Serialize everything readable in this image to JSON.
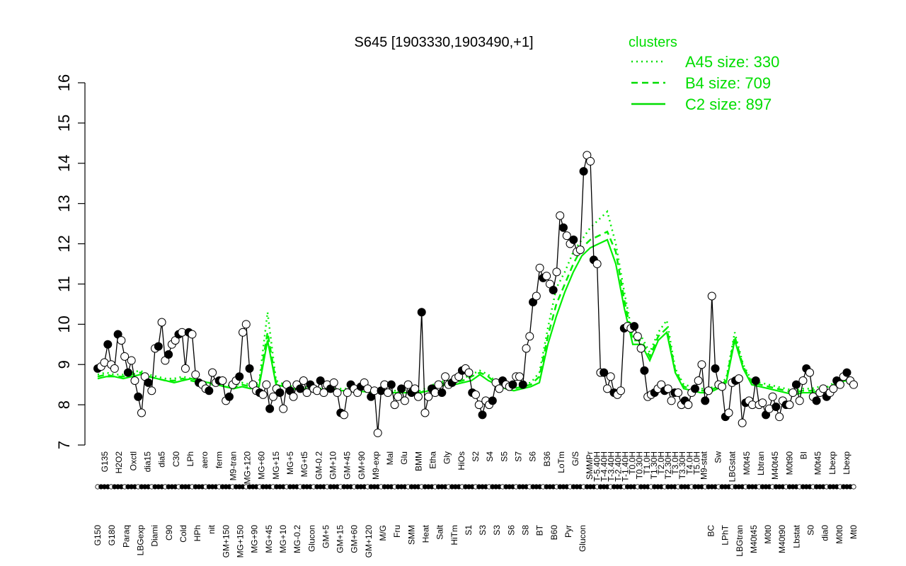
{
  "chart_data": {
    "type": "line",
    "title": "S645 [1903330,1903490,+1]",
    "xlabel": "",
    "ylabel": "",
    "ylim": [
      7,
      16
    ],
    "yticks": [
      7,
      8,
      9,
      10,
      11,
      12,
      13,
      14,
      15,
      16
    ],
    "grid": false,
    "legend": {
      "title": "clusters",
      "placement": "top-right",
      "entries": [
        {
          "label": "A45 size: 330",
          "style": "dotted"
        },
        {
          "label": "B4 size: 709",
          "style": "dashed"
        },
        {
          "label": "C2 size: 897",
          "style": "solid"
        }
      ]
    },
    "x_labels": [
      {
        "label": "G150",
        "row": 1
      },
      {
        "label": "G135",
        "row": 0
      },
      {
        "label": "G180",
        "row": 1
      },
      {
        "label": "H2O2",
        "row": 0
      },
      {
        "label": "Paraq",
        "row": 1
      },
      {
        "label": "Oxctl",
        "row": 0
      },
      {
        "label": "LBGexp",
        "row": 1
      },
      {
        "label": "dia15",
        "row": 0
      },
      {
        "label": "Diami",
        "row": 1
      },
      {
        "label": "dia5",
        "row": 0
      },
      {
        "label": "C90",
        "row": 1
      },
      {
        "label": "C30",
        "row": 0
      },
      {
        "label": "Cold",
        "row": 1
      },
      {
        "label": "LPh",
        "row": 0
      },
      {
        "label": "HPh",
        "row": 1
      },
      {
        "label": "aero",
        "row": 0
      },
      {
        "label": "nit",
        "row": 1
      },
      {
        "label": "ferm",
        "row": 0
      },
      {
        "label": "GM+150",
        "row": 1
      },
      {
        "label": "M9-tran",
        "row": 0
      },
      {
        "label": "MG+150",
        "row": 1
      },
      {
        "label": "MG+120",
        "row": 0
      },
      {
        "label": "MG+90",
        "row": 1
      },
      {
        "label": "MG+60",
        "row": 0
      },
      {
        "label": "MG+45",
        "row": 1
      },
      {
        "label": "MG+15",
        "row": 0
      },
      {
        "label": "MG+10",
        "row": 1
      },
      {
        "label": "MG+5",
        "row": 0
      },
      {
        "label": "MG-0.2",
        "row": 1
      },
      {
        "label": "MG+t5",
        "row": 0
      },
      {
        "label": "Glucon",
        "row": 1
      },
      {
        "label": "GM-0.2",
        "row": 0
      },
      {
        "label": "GM+5",
        "row": 1
      },
      {
        "label": "GM+10",
        "row": 0
      },
      {
        "label": "GM+15",
        "row": 1
      },
      {
        "label": "GM+45",
        "row": 0
      },
      {
        "label": "GM+60",
        "row": 1
      },
      {
        "label": "GM+90",
        "row": 0
      },
      {
        "label": "GM+120",
        "row": 1
      },
      {
        "label": "M9-exp",
        "row": 0
      },
      {
        "label": "M/G",
        "row": 1
      },
      {
        "label": "Mal",
        "row": 0
      },
      {
        "label": "Fru",
        "row": 1
      },
      {
        "label": "Glu",
        "row": 0
      },
      {
        "label": "SMM",
        "row": 1
      },
      {
        "label": "BMM",
        "row": 0
      },
      {
        "label": "Heat",
        "row": 1
      },
      {
        "label": "Etha",
        "row": 0
      },
      {
        "label": "Salt",
        "row": 1
      },
      {
        "label": "Gly",
        "row": 0
      },
      {
        "label": "HiTm",
        "row": 1
      },
      {
        "label": "HiOs",
        "row": 0
      },
      {
        "label": "S1",
        "row": 1
      },
      {
        "label": "S2",
        "row": 0
      },
      {
        "label": "S3",
        "row": 1
      },
      {
        "label": "S4",
        "row": 0
      },
      {
        "label": "S3",
        "row": 1
      },
      {
        "label": "S5",
        "row": 0
      },
      {
        "label": "S6",
        "row": 1
      },
      {
        "label": "S7",
        "row": 0
      },
      {
        "label": "S8",
        "row": 1
      },
      {
        "label": "S6",
        "row": 0
      },
      {
        "label": "BT",
        "row": 1
      },
      {
        "label": "B36",
        "row": 0
      },
      {
        "label": "B60",
        "row": 1
      },
      {
        "label": "LoTm",
        "row": 0
      },
      {
        "label": "Pyr",
        "row": 1
      },
      {
        "label": "G/S",
        "row": 0
      },
      {
        "label": "Glucon",
        "row": 1
      },
      {
        "label": "SMMPr",
        "row": 0
      },
      {
        "label": "T-5.40H",
        "row": 0
      },
      {
        "label": "T-4.40H",
        "row": 0
      },
      {
        "label": "T-3.40H",
        "row": 0
      },
      {
        "label": "T-2.40H",
        "row": 0
      },
      {
        "label": "T-1.40H",
        "row": 0
      },
      {
        "label": "T0.0H",
        "row": 0
      },
      {
        "label": "T0.30H",
        "row": 0
      },
      {
        "label": "T1.0H",
        "row": 0
      },
      {
        "label": "T1.30H",
        "row": 0
      },
      {
        "label": "T2.0H",
        "row": 0
      },
      {
        "label": "T2.30H",
        "row": 0
      },
      {
        "label": "T3.0H",
        "row": 0
      },
      {
        "label": "T3.30H",
        "row": 0
      },
      {
        "label": "T4.0H",
        "row": 0
      },
      {
        "label": "T5.0H",
        "row": 0
      },
      {
        "label": "M9-stat",
        "row": 0
      },
      {
        "label": "BC",
        "row": 1
      },
      {
        "label": "Sw",
        "row": 0
      },
      {
        "label": "LPhT",
        "row": 1
      },
      {
        "label": "LBGstat",
        "row": 0
      },
      {
        "label": "LBGtran",
        "row": 1
      },
      {
        "label": "M0t45",
        "row": 0
      },
      {
        "label": "M40t45",
        "row": 1
      },
      {
        "label": "Lbtran",
        "row": 0
      },
      {
        "label": "M0t0",
        "row": 1
      },
      {
        "label": "M40t45",
        "row": 0
      },
      {
        "label": "M40t90",
        "row": 1
      },
      {
        "label": "M0t90",
        "row": 0
      },
      {
        "label": "Lbstat",
        "row": 1
      },
      {
        "label": "BI",
        "row": 0
      },
      {
        "label": "S0",
        "row": 1
      },
      {
        "label": "M0t45",
        "row": 0
      },
      {
        "label": "dia0",
        "row": 1
      },
      {
        "label": "Lbexp",
        "row": 0
      },
      {
        "label": "M0t0",
        "row": 1
      },
      {
        "label": "Lbexp",
        "row": 0
      },
      {
        "label": "Mt0",
        "row": 1
      }
    ],
    "series": [
      {
        "style": "solid",
        "role": "points",
        "values": [
          8.9,
          8.95,
          9.05,
          9.5,
          9.0,
          8.9,
          9.75,
          9.6,
          9.2,
          8.8,
          9.1,
          8.6,
          8.2,
          7.8,
          8.7,
          8.55,
          8.35,
          9.4,
          9.45,
          10.05,
          9.1,
          9.25,
          9.5,
          9.6,
          9.75,
          9.8,
          8.9,
          9.8,
          9.75,
          8.75,
          8.55,
          8.5,
          8.4,
          8.35,
          8.8,
          8.55,
          8.6,
          8.6,
          8.1,
          8.2,
          8.5,
          8.6,
          8.7,
          9.8,
          10.0,
          8.9,
          8.5,
          8.35,
          8.3,
          8.25,
          8.5,
          7.9,
          8.2,
          8.4,
          8.3,
          7.9,
          8.5,
          8.35,
          8.2,
          8.5,
          8.4,
          8.6,
          8.3,
          8.5,
          8.4,
          8.35,
          8.6,
          8.3,
          8.5,
          8.4,
          8.55,
          8.3,
          7.8,
          7.75,
          8.3,
          8.5,
          8.4,
          8.3,
          8.45,
          8.55,
          8.4,
          8.2,
          8.35,
          7.3,
          8.35,
          8.5,
          8.3,
          8.5,
          8.0,
          8.2,
          8.4,
          8.1,
          8.5,
          8.3,
          8.4,
          8.2,
          10.3,
          7.8,
          8.2,
          8.4,
          8.3,
          8.5,
          8.3,
          8.7,
          8.5,
          8.55,
          8.65,
          8.7,
          8.85,
          8.9,
          8.8,
          8.3,
          8.25,
          8.0,
          7.75,
          8.1,
          8.0,
          8.1,
          8.55,
          8.4,
          8.6,
          8.5,
          8.45,
          8.5,
          8.7,
          8.7,
          8.5,
          9.4,
          9.7,
          10.55,
          10.7,
          11.4,
          11.15,
          11.2,
          11.0,
          10.85,
          11.3,
          12.7,
          12.4,
          12.2,
          12.0,
          12.1,
          11.8,
          11.85,
          13.8,
          14.2,
          14.05,
          11.6,
          11.5,
          8.8,
          8.8,
          8.4,
          8.7,
          8.3,
          8.25,
          8.35,
          9.9,
          9.95,
          9.9,
          9.95,
          9.7,
          9.4,
          8.85,
          8.2,
          8.25,
          8.3,
          8.4,
          8.5,
          8.35,
          8.4,
          8.1,
          8.3,
          8.3,
          8.0,
          8.1,
          8.0,
          8.3,
          8.4,
          8.6,
          9.0,
          8.1,
          8.35,
          10.7,
          8.9,
          8.5,
          8.45,
          7.7,
          7.8,
          8.55,
          8.6,
          8.65,
          7.55,
          8.05,
          8.1,
          8.0,
          8.6,
          8.0,
          8.05,
          7.75,
          7.9,
          8.2,
          7.95,
          7.7,
          8.1,
          8.0,
          8.0,
          8.3,
          8.5,
          8.1,
          8.6,
          8.9,
          8.8,
          8.2,
          8.1,
          8.3,
          8.4,
          8.2,
          8.3,
          8.4,
          8.6,
          8.5,
          8.7,
          8.8,
          8.6,
          8.5
        ]
      },
      {
        "name": "C2",
        "style": "solid",
        "role": "cluster",
        "values": [
          8.65,
          8.7,
          8.7,
          8.65,
          8.7,
          8.75,
          8.7,
          8.65,
          8.6,
          8.55,
          8.6,
          8.65,
          8.6,
          8.55,
          8.5,
          8.45,
          8.4,
          8.45,
          8.4,
          8.45,
          9.6,
          8.5,
          8.45,
          8.4,
          8.38,
          8.35,
          8.35,
          8.33,
          8.35,
          8.35,
          8.33,
          8.33,
          8.32,
          8.3,
          8.32,
          8.3,
          8.3,
          8.3,
          8.3,
          8.35,
          8.45,
          8.5,
          8.5,
          8.55,
          8.6,
          8.75,
          8.6,
          8.5,
          8.4,
          8.35,
          8.4,
          8.45,
          8.55,
          9.5,
          10.2,
          10.8,
          11.3,
          11.7,
          11.9,
          12.0,
          12.1,
          11.5,
          10.4,
          9.5,
          9.5,
          9.1,
          9.6,
          9.8,
          8.8,
          8.4,
          8.35,
          8.3,
          8.3,
          8.4,
          8.55,
          9.6,
          8.9,
          8.5,
          8.45,
          8.4,
          8.35,
          8.3,
          8.25,
          8.3,
          8.3,
          8.35,
          8.35,
          8.5,
          8.6,
          8.5
        ]
      },
      {
        "name": "B4",
        "style": "dashed",
        "role": "cluster",
        "values": [
          8.7,
          8.75,
          8.7,
          8.7,
          8.75,
          8.8,
          8.7,
          8.65,
          8.6,
          8.6,
          8.65,
          8.6,
          8.55,
          8.5,
          8.5,
          8.45,
          8.4,
          8.5,
          8.45,
          8.5,
          9.8,
          8.55,
          8.45,
          8.4,
          8.4,
          8.38,
          8.36,
          8.35,
          8.35,
          8.35,
          8.35,
          8.33,
          8.32,
          8.32,
          8.32,
          8.3,
          8.32,
          8.3,
          8.3,
          8.4,
          8.5,
          8.55,
          8.55,
          8.6,
          8.7,
          8.8,
          8.7,
          8.5,
          8.45,
          8.4,
          8.45,
          8.5,
          8.7,
          9.7,
          10.5,
          11.0,
          11.5,
          11.9,
          12.1,
          12.2,
          12.3,
          11.8,
          10.6,
          9.6,
          9.6,
          9.2,
          9.7,
          9.9,
          8.85,
          8.45,
          8.4,
          8.35,
          8.35,
          8.45,
          8.6,
          9.7,
          8.95,
          8.55,
          8.5,
          8.45,
          8.4,
          8.35,
          8.3,
          8.35,
          8.35,
          8.4,
          8.4,
          8.55,
          8.65,
          8.55
        ]
      },
      {
        "name": "A45",
        "style": "dotted",
        "role": "cluster",
        "values": [
          8.75,
          8.8,
          8.75,
          8.75,
          8.8,
          8.85,
          8.75,
          8.7,
          8.65,
          8.65,
          8.7,
          8.65,
          8.6,
          8.55,
          8.55,
          8.5,
          8.45,
          8.55,
          8.5,
          8.55,
          10.3,
          8.6,
          8.5,
          8.45,
          8.45,
          8.42,
          8.4,
          8.4,
          8.4,
          8.4,
          8.4,
          8.38,
          8.36,
          8.36,
          8.36,
          8.35,
          8.36,
          8.35,
          8.35,
          8.45,
          8.55,
          8.6,
          8.6,
          8.65,
          8.75,
          8.85,
          8.75,
          8.55,
          8.5,
          8.45,
          8.5,
          8.55,
          8.8,
          9.9,
          10.9,
          11.3,
          11.8,
          12.1,
          12.4,
          12.6,
          12.8,
          12.0,
          10.8,
          9.7,
          9.7,
          9.3,
          9.8,
          10.1,
          8.9,
          8.5,
          8.45,
          8.4,
          8.4,
          8.5,
          8.65,
          9.8,
          9.0,
          8.6,
          8.55,
          8.5,
          8.45,
          8.4,
          8.35,
          8.4,
          8.4,
          8.45,
          8.45,
          8.6,
          8.7,
          8.6
        ]
      }
    ]
  },
  "colors": {
    "legend": "#00dd00",
    "cluster_line": "#00ee00",
    "points_line": "#000000",
    "point_fill": "#ffffff"
  }
}
